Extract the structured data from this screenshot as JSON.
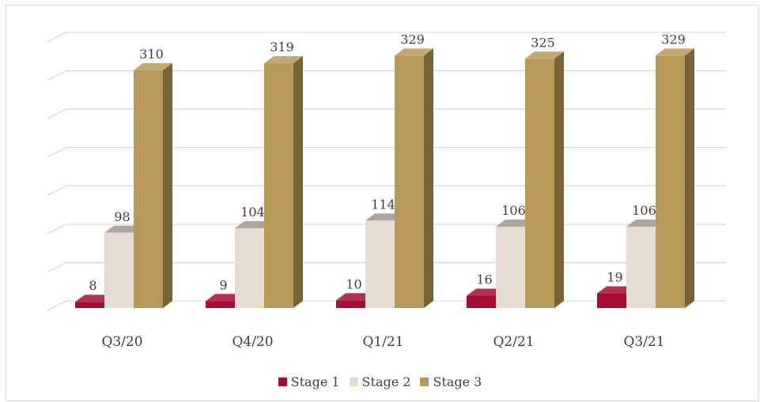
{
  "chart_data": {
    "type": "bar",
    "categories": [
      "Q3/20",
      "Q4/20",
      "Q1/21",
      "Q2/21",
      "Q3/21"
    ],
    "series": [
      {
        "name": "Stage 1",
        "values": [
          8,
          9,
          10,
          16,
          19
        ],
        "color": "#a50e32"
      },
      {
        "name": "Stage 2",
        "values": [
          98,
          104,
          114,
          106,
          106
        ],
        "color": "#e6dcd2"
      },
      {
        "name": "Stage 3",
        "values": [
          310,
          319,
          329,
          325,
          329
        ],
        "color": "#b89958"
      }
    ],
    "ylim": [
      0,
      350
    ],
    "grid": true,
    "legend": "bottom",
    "style": "3d-column"
  }
}
